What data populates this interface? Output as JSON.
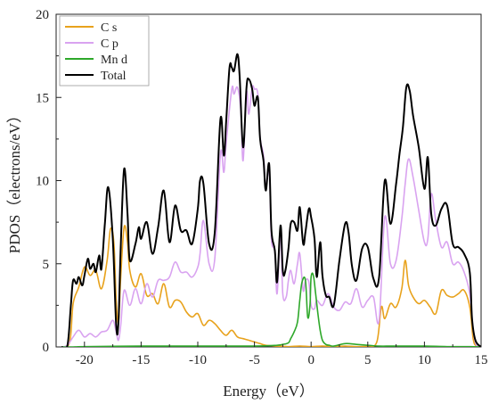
{
  "chart_data": {
    "type": "line",
    "xlabel": "Energy（eV）",
    "ylabel": "PDOS（electrons/eV）",
    "xlim": [
      -22.5,
      15
    ],
    "ylim": [
      0,
      20
    ],
    "xticks": [
      -20,
      -15,
      -10,
      -5,
      0,
      5,
      10,
      15
    ],
    "yticks": [
      0,
      5,
      10,
      15,
      20
    ],
    "xtick_labels": [
      "-20",
      "-15",
      "-10",
      "-5",
      "0",
      "5",
      "10",
      "15"
    ],
    "ytick_labels": [
      "0",
      "5",
      "10",
      "15",
      "20"
    ],
    "grid": false,
    "legend_position": "top-left",
    "series": [
      {
        "name": "C s",
        "color": "#e8a21c",
        "x": [
          -22,
          -21.3,
          -21,
          -20.5,
          -20,
          -19.5,
          -19,
          -18.5,
          -18,
          -17.7,
          -17.4,
          -17.2,
          -17,
          -16.8,
          -16.5,
          -16.2,
          -16,
          -15.5,
          -15,
          -14.5,
          -14,
          -13.5,
          -13,
          -12.5,
          -12,
          -11.5,
          -11,
          -10.5,
          -10,
          -9.5,
          -9,
          -8.5,
          -8,
          -7.5,
          -7,
          -6.5,
          -6,
          -5.5,
          -5,
          -4.5,
          -4,
          -3,
          -2,
          -1,
          0,
          1,
          2,
          3,
          4,
          5,
          5.8,
          6.2,
          6.5,
          7,
          7.5,
          8,
          8.3,
          8.6,
          9,
          9.5,
          10,
          10.5,
          11,
          11.5,
          12,
          12.5,
          13,
          13.5,
          14,
          14.3,
          14.6,
          15
        ],
        "y": [
          0,
          0.3,
          2.6,
          3.6,
          4.8,
          4.3,
          4.6,
          3.5,
          5.2,
          7.1,
          6.2,
          2.8,
          1.5,
          4.2,
          7.2,
          6.3,
          4.6,
          3.6,
          4.4,
          3.1,
          3.2,
          2.6,
          3.8,
          2.4,
          2.8,
          2.7,
          2.1,
          1.8,
          2.0,
          1.3,
          1.6,
          1.4,
          1.0,
          0.7,
          1.0,
          0.6,
          0.5,
          0.4,
          0.3,
          0.2,
          0.1,
          0.05,
          0.02,
          0.05,
          0.02,
          0.05,
          0.02,
          0.05,
          0.02,
          0.05,
          0.3,
          2.4,
          1.7,
          2.6,
          2.4,
          3.5,
          5.2,
          3.7,
          3.0,
          2.6,
          2.8,
          2.4,
          2.0,
          3.4,
          3.1,
          3.0,
          3.2,
          3.4,
          2.4,
          0.5,
          0.05,
          0
        ]
      },
      {
        "name": "C p",
        "color": "#d9a3f0",
        "x": [
          -22,
          -21.5,
          -21,
          -20.5,
          -20,
          -19.5,
          -19,
          -18.5,
          -18,
          -17.5,
          -17.2,
          -17,
          -16.8,
          -16.5,
          -16,
          -15.5,
          -15,
          -14.5,
          -14,
          -13.5,
          -13,
          -12.5,
          -12,
          -11.5,
          -11,
          -10.5,
          -10,
          -9.8,
          -9.5,
          -9,
          -8.5,
          -8,
          -7.7,
          -7.5,
          -7,
          -6.8,
          -6.5,
          -6.2,
          -6,
          -5.7,
          -5.5,
          -5.2,
          -5,
          -4.7,
          -4.5,
          -4.2,
          -4,
          -3.7,
          -3.5,
          -3.2,
          -3,
          -2.7,
          -2.5,
          -2.2,
          -2,
          -1.8,
          -1.5,
          -1.2,
          -1,
          -0.7,
          -0.5,
          -0.2,
          0,
          0.3,
          0.5,
          1,
          1.5,
          2,
          2.5,
          3,
          3.5,
          4,
          4.5,
          5,
          5.5,
          6,
          6.5,
          7,
          7.5,
          8,
          8.3,
          8.6,
          9,
          9.5,
          10,
          10.3,
          10.6,
          11,
          11.5,
          12,
          12.5,
          13,
          13.5,
          14,
          14.3,
          14.6,
          15
        ],
        "y": [
          0,
          0.1,
          0.6,
          1.0,
          0.6,
          0.8,
          0.6,
          0.9,
          1.0,
          1.6,
          0.9,
          0.4,
          1.3,
          3.4,
          2.5,
          3.5,
          2.6,
          3.8,
          3.0,
          4.0,
          4.0,
          4.2,
          5.1,
          4.5,
          4.5,
          4.2,
          4.8,
          5.6,
          7.6,
          5.0,
          5.3,
          11.6,
          10.5,
          12.2,
          15.5,
          15.2,
          15.6,
          14.2,
          11.2,
          15.3,
          14.0,
          15.6,
          15.5,
          15.2,
          12.6,
          11.5,
          9.5,
          10.7,
          6.5,
          5.7,
          3.2,
          6.9,
          3.2,
          3.0,
          4.0,
          4.6,
          3.8,
          5.0,
          5.6,
          3.4,
          4.0,
          3.9,
          2.5,
          2.3,
          2.8,
          2.5,
          3.2,
          2.4,
          2.2,
          2.7,
          2.6,
          3.5,
          2.4,
          2.8,
          3.0,
          1.6,
          7.8,
          5.0,
          5.2,
          7.7,
          9.8,
          11.3,
          10.2,
          8.2,
          6.3,
          6.5,
          9.2,
          7.6,
          6.0,
          6.3,
          5.0,
          5.1,
          4.5,
          3.2,
          1.0,
          0.1,
          0
        ]
      },
      {
        "name": "Mn d",
        "color": "#2ea82a",
        "x": [
          -22,
          -21,
          -20,
          -15,
          -10,
          -5,
          -3,
          -2.5,
          -2,
          -1.8,
          -1.5,
          -1.2,
          -1,
          -0.8,
          -0.5,
          -0.3,
          -0.1,
          0,
          0.2,
          0.4,
          0.6,
          0.8,
          1,
          1.3,
          1.6,
          2,
          3,
          4,
          5,
          6,
          7,
          8,
          10,
          12,
          14,
          15
        ],
        "y": [
          0,
          0,
          0.02,
          0.05,
          0.05,
          0.05,
          0.1,
          0.15,
          0.25,
          0.5,
          0.9,
          1.5,
          2.8,
          3.9,
          4.0,
          1.8,
          2.5,
          4.2,
          4.3,
          3.2,
          2.0,
          1.0,
          0.4,
          0.15,
          0.1,
          0.05,
          0.2,
          0.15,
          0.1,
          0.05,
          0.05,
          0.05,
          0.05,
          0.02,
          0.02,
          0
        ]
      },
      {
        "name": "Total",
        "color": "#000000",
        "x": [
          -22,
          -21.5,
          -21.2,
          -21,
          -20.7,
          -20.5,
          -20.2,
          -20,
          -19.7,
          -19.5,
          -19.2,
          -19,
          -18.7,
          -18.5,
          -18.2,
          -17.9,
          -17.5,
          -17.2,
          -17,
          -16.8,
          -16.5,
          -16.2,
          -16,
          -15.5,
          -15.2,
          -15,
          -14.5,
          -14,
          -13.5,
          -13,
          -12.5,
          -12,
          -11.5,
          -11,
          -10.5,
          -10,
          -9.8,
          -9.5,
          -9,
          -8.5,
          -8,
          -7.7,
          -7.5,
          -7.2,
          -7,
          -6.8,
          -6.5,
          -6.3,
          -6,
          -5.7,
          -5.5,
          -5.2,
          -5,
          -4.7,
          -4.5,
          -4.2,
          -4,
          -3.7,
          -3.5,
          -3.2,
          -3,
          -2.7,
          -2.5,
          -2.3,
          -2,
          -1.8,
          -1.5,
          -1.2,
          -1,
          -0.7,
          -0.5,
          -0.2,
          0,
          0.3,
          0.5,
          0.8,
          1,
          1.3,
          1.6,
          2,
          2.5,
          3,
          3.3,
          3.6,
          4,
          4.5,
          5,
          5.5,
          6,
          6.5,
          7,
          7.5,
          7.8,
          8.1,
          8.4,
          8.7,
          9,
          9.5,
          10,
          10.3,
          10.6,
          11,
          11.5,
          12,
          12.5,
          13,
          13.5,
          14,
          14.2,
          14.5,
          15
        ],
        "y": [
          0,
          0.1,
          2.5,
          4.0,
          3.8,
          4.2,
          3.7,
          4.3,
          5.3,
          4.7,
          5.0,
          4.5,
          5.5,
          4.7,
          7.4,
          9.6,
          6.5,
          1.3,
          1.5,
          6.0,
          10.7,
          8.0,
          5.2,
          6.2,
          7.2,
          6.5,
          7.5,
          5.6,
          7.2,
          9.4,
          6.3,
          8.5,
          7.0,
          7.0,
          6.2,
          8.3,
          10.0,
          9.8,
          6.2,
          6.9,
          13.7,
          11.5,
          13.5,
          16.8,
          16.8,
          16.6,
          17.6,
          16.2,
          12.0,
          15.6,
          16.1,
          15.5,
          14.5,
          15.0,
          12.5,
          11.2,
          9.4,
          11.0,
          7.0,
          5.8,
          3.9,
          7.3,
          4.6,
          4.5,
          5.9,
          7.4,
          7.5,
          7.0,
          8.4,
          6.2,
          6.9,
          8.3,
          7.8,
          6.5,
          4.2,
          6.3,
          4.3,
          3.1,
          3.0,
          2.5,
          5.2,
          7.4,
          6.9,
          4.9,
          4.0,
          5.9,
          6.0,
          4.1,
          4.2,
          10.0,
          7.4,
          9.8,
          11.6,
          13.2,
          15.6,
          15.4,
          13.9,
          12.0,
          9.5,
          11.4,
          8.0,
          7.3,
          8.3,
          8.5,
          6.2,
          6.0,
          5.6,
          4.5,
          1.7,
          0.4,
          0
        ]
      }
    ]
  }
}
